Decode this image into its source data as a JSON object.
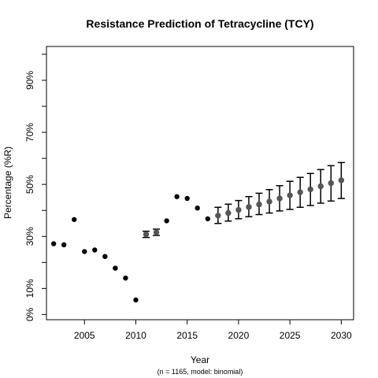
{
  "chart_data": {
    "type": "scatter",
    "title": "Resistance Prediction of Tetracycline (TCY)",
    "xlabel": "Year",
    "ylabel": "Percentage (%R)",
    "caption": "(n = 1165, model: binomial)",
    "xlim": [
      2001.3,
      2031.2
    ],
    "ylim": [
      -2,
      103
    ],
    "x_ticks": [
      2005,
      2010,
      2015,
      2020,
      2025,
      2030
    ],
    "y_ticks": [
      0,
      10,
      30,
      50,
      70,
      90
    ],
    "y_tick_labels": [
      "0%",
      "10%",
      "30%",
      "50%",
      "70%",
      "90%"
    ],
    "y_minor_ticks": [
      20,
      40,
      60,
      80,
      100
    ],
    "grid": false,
    "series": [
      {
        "role": "observed",
        "color": "#000000",
        "points": [
          {
            "x": 2002,
            "y": 27.2
          },
          {
            "x": 2003,
            "y": 26.8
          },
          {
            "x": 2004,
            "y": 36.5
          },
          {
            "x": 2005,
            "y": 24.2
          },
          {
            "x": 2006,
            "y": 24.8
          },
          {
            "x": 2007,
            "y": 22.3
          },
          {
            "x": 2008,
            "y": 17.8
          },
          {
            "x": 2009,
            "y": 14.0
          },
          {
            "x": 2010,
            "y": 5.6
          },
          {
            "x": 2013,
            "y": 36.0
          },
          {
            "x": 2014,
            "y": 45.3
          },
          {
            "x": 2015,
            "y": 44.6
          },
          {
            "x": 2016,
            "y": 40.9
          },
          {
            "x": 2017,
            "y": 36.8
          }
        ]
      },
      {
        "role": "interpolated",
        "color": "#555555",
        "points": [
          {
            "x": 2011,
            "y": 30.8,
            "lo": 29.6,
            "hi": 32.0
          },
          {
            "x": 2012,
            "y": 31.6,
            "lo": 30.4,
            "hi": 32.8
          }
        ]
      },
      {
        "role": "predicted",
        "color": "#555555",
        "points": [
          {
            "x": 2018,
            "y": 38.0,
            "lo": 35.0,
            "hi": 41.2
          },
          {
            "x": 2019,
            "y": 39.0,
            "lo": 35.9,
            "hi": 42.4
          },
          {
            "x": 2020,
            "y": 40.2,
            "lo": 36.8,
            "hi": 43.8
          },
          {
            "x": 2021,
            "y": 41.3,
            "lo": 37.6,
            "hi": 45.3
          },
          {
            "x": 2022,
            "y": 42.3,
            "lo": 38.4,
            "hi": 46.6
          },
          {
            "x": 2023,
            "y": 43.4,
            "lo": 39.0,
            "hi": 48.0
          },
          {
            "x": 2024,
            "y": 44.6,
            "lo": 39.8,
            "hi": 49.5
          },
          {
            "x": 2025,
            "y": 45.8,
            "lo": 40.4,
            "hi": 51.2
          },
          {
            "x": 2026,
            "y": 47.0,
            "lo": 41.2,
            "hi": 52.7
          },
          {
            "x": 2027,
            "y": 48.1,
            "lo": 41.9,
            "hi": 54.2
          },
          {
            "x": 2028,
            "y": 49.3,
            "lo": 42.8,
            "hi": 55.7
          },
          {
            "x": 2029,
            "y": 50.5,
            "lo": 43.6,
            "hi": 57.2
          },
          {
            "x": 2030,
            "y": 51.6,
            "lo": 44.6,
            "hi": 58.4
          }
        ]
      }
    ]
  }
}
